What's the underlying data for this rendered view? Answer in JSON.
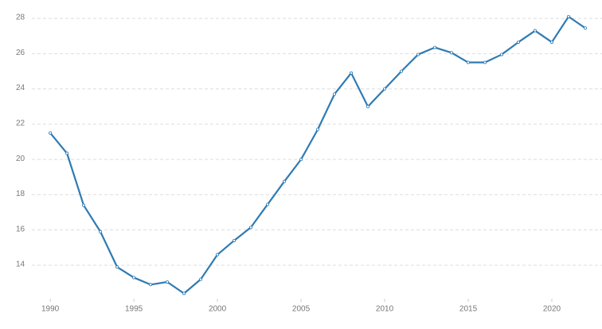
{
  "chart_data": {
    "type": "line",
    "x": [
      1990,
      1991,
      1992,
      1993,
      1994,
      1995,
      1996,
      1997,
      1998,
      1999,
      2000,
      2001,
      2002,
      2003,
      2004,
      2005,
      2006,
      2007,
      2008,
      2009,
      2010,
      2011,
      2012,
      2013,
      2014,
      2015,
      2016,
      2017,
      2018,
      2019,
      2020,
      2021,
      2022
    ],
    "series": [
      {
        "color": "#2e7bb3",
        "values": [
          21.5,
          20.35,
          17.4,
          15.9,
          13.9,
          13.3,
          12.9,
          13.05,
          12.4,
          13.2,
          14.6,
          15.4,
          16.15,
          17.45,
          18.75,
          20.0,
          21.7,
          23.7,
          24.9,
          23.0,
          24.0,
          25.0,
          25.95,
          26.35,
          26.05,
          25.5,
          25.5,
          25.95,
          26.65,
          27.3,
          26.65,
          28.1,
          27.45
        ]
      }
    ],
    "xlim": [
      1988.9,
      2023
    ],
    "xticks": [
      1990,
      1995,
      2000,
      2005,
      2010,
      2015,
      2020
    ],
    "ylim": [
      12.1,
      28.5
    ],
    "yticks": [
      14,
      16,
      18,
      20,
      22,
      24,
      26,
      28
    ],
    "grid": true
  }
}
